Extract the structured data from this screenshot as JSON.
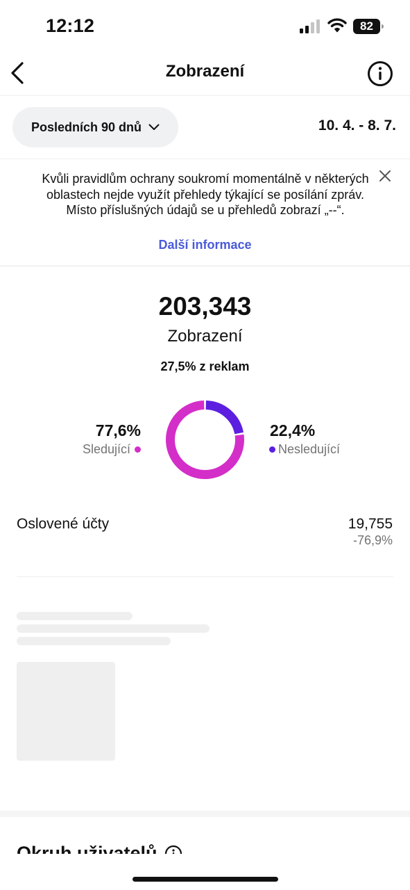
{
  "status_bar": {
    "time": "12:12",
    "battery": "82"
  },
  "header": {
    "title": "Zobrazení",
    "back_icon": "chevron-left-icon",
    "info_icon": "info-icon"
  },
  "filter": {
    "range_label": "Posledních 90 dnů",
    "date_range": "10. 4. - 8. 7."
  },
  "notice": {
    "text": "Kvůli pravidlům ochrany soukromí momentálně v některých oblastech nejde využít přehledy týkající se posílání zpráv. Místo příslušných údajů se u přehledů zobrazí „--“.",
    "link": "Další informace",
    "link_color": "#4a5ad8"
  },
  "totals": {
    "value": "203,343",
    "label": "Zobrazení",
    "ads_share": "27,5% z reklam"
  },
  "breakdown": {
    "followers": {
      "percent": "77,6%",
      "label": "Sledující",
      "color": "#d42ec9",
      "fraction": 0.776
    },
    "non_followers": {
      "percent": "22,4%",
      "label": "Nesledující",
      "color": "#5c1fe0",
      "fraction": 0.224
    }
  },
  "reached_accounts": {
    "label": "Oslovené účty",
    "value": "19,755",
    "change": "-76,9%"
  },
  "next_section": {
    "title": "Okruh uživatelů"
  }
}
